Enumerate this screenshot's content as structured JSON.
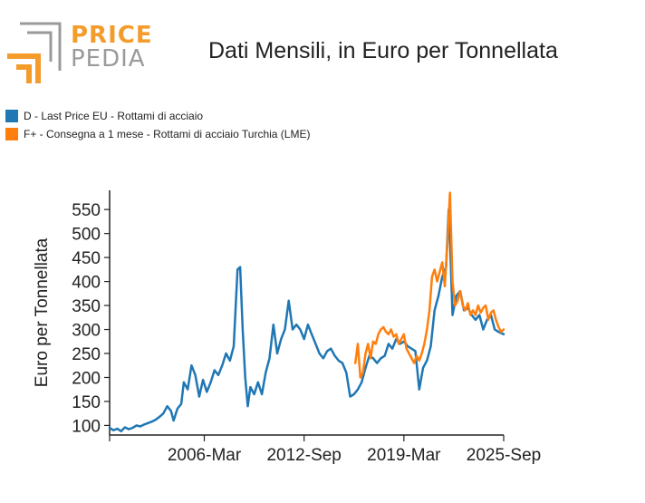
{
  "header": {
    "logo_top": "PRICE",
    "logo_bottom": "PEDIA",
    "title": "Dati Mensili, in Euro per Tonnellata"
  },
  "colors": {
    "blue": "#1f77b4",
    "orange": "#ff7f0e",
    "logo_orange": "#f39c2b",
    "logo_gray": "#9a9a9a"
  },
  "chart_data": {
    "type": "line",
    "title": "Dati Mensili, in Euro per Tonnellata",
    "xlabel": "",
    "ylabel": "Euro per Tonnellata",
    "ylim": [
      80,
      590
    ],
    "xlim": [
      "2000-01",
      "2025-09"
    ],
    "yticks": [
      100,
      150,
      200,
      250,
      300,
      350,
      400,
      450,
      500,
      550
    ],
    "xticks": [
      "2006-Mar",
      "2012-Sep",
      "2019-Mar",
      "2025-Sep"
    ],
    "grid": false,
    "legend_position": "top-left",
    "series": [
      {
        "name": "D - Last Price EU - Rottami di acciaio",
        "color": "#1f77b4",
        "x": [
          "2000-01",
          "2000-04",
          "2000-07",
          "2000-10",
          "2001-01",
          "2001-04",
          "2001-07",
          "2001-10",
          "2002-01",
          "2002-04",
          "2002-07",
          "2002-10",
          "2003-01",
          "2003-04",
          "2003-07",
          "2003-10",
          "2004-01",
          "2004-03",
          "2004-06",
          "2004-09",
          "2004-11",
          "2005-02",
          "2005-05",
          "2005-08",
          "2005-11",
          "2006-02",
          "2006-05",
          "2006-08",
          "2006-11",
          "2007-02",
          "2007-05",
          "2007-08",
          "2007-11",
          "2008-02",
          "2008-05",
          "2008-07",
          "2008-09",
          "2008-11",
          "2009-01",
          "2009-03",
          "2009-06",
          "2009-09",
          "2009-12",
          "2010-03",
          "2010-06",
          "2010-09",
          "2010-12",
          "2011-03",
          "2011-06",
          "2011-09",
          "2011-12",
          "2012-03",
          "2012-06",
          "2012-09",
          "2012-12",
          "2013-03",
          "2013-06",
          "2013-09",
          "2013-12",
          "2014-03",
          "2014-06",
          "2014-09",
          "2014-12",
          "2015-03",
          "2015-06",
          "2015-09",
          "2015-12",
          "2016-03",
          "2016-06",
          "2016-09",
          "2016-12",
          "2017-03",
          "2017-06",
          "2017-09",
          "2017-12",
          "2018-03",
          "2018-06",
          "2018-09",
          "2018-12",
          "2019-03",
          "2019-06",
          "2019-09",
          "2019-12",
          "2020-03",
          "2020-06",
          "2020-09",
          "2020-12",
          "2021-03",
          "2021-06",
          "2021-09",
          "2021-12",
          "2022-02",
          "2022-03",
          "2022-05",
          "2022-08",
          "2022-11",
          "2023-02",
          "2023-05",
          "2023-08",
          "2023-11",
          "2024-02",
          "2024-05",
          "2024-08",
          "2024-11",
          "2025-02",
          "2025-05",
          "2025-09"
        ],
        "values": [
          95,
          90,
          93,
          88,
          96,
          92,
          95,
          100,
          98,
          102,
          105,
          108,
          112,
          118,
          125,
          140,
          130,
          110,
          135,
          145,
          190,
          175,
          225,
          205,
          160,
          195,
          170,
          190,
          215,
          205,
          225,
          250,
          235,
          265,
          425,
          430,
          300,
          200,
          140,
          180,
          165,
          190,
          165,
          210,
          240,
          310,
          250,
          280,
          300,
          360,
          300,
          310,
          300,
          280,
          310,
          290,
          270,
          250,
          240,
          255,
          260,
          245,
          235,
          230,
          210,
          160,
          165,
          175,
          190,
          220,
          245,
          240,
          230,
          240,
          245,
          270,
          260,
          280,
          270,
          275,
          265,
          260,
          255,
          175,
          220,
          235,
          265,
          340,
          370,
          410,
          430,
          550,
          490,
          330,
          370,
          380,
          340,
          345,
          330,
          320,
          330,
          300,
          320,
          330,
          300,
          295,
          290
        ]
      },
      {
        "name": "F+ - Consegna a 1 mese - Rottami di acciaio Turchia (LME)",
        "color": "#ff7f0e",
        "x": [
          "2016-01",
          "2016-03",
          "2016-05",
          "2016-07",
          "2016-09",
          "2016-11",
          "2017-01",
          "2017-03",
          "2017-05",
          "2017-07",
          "2017-09",
          "2017-11",
          "2018-01",
          "2018-03",
          "2018-05",
          "2018-07",
          "2018-09",
          "2018-11",
          "2019-01",
          "2019-03",
          "2019-05",
          "2019-07",
          "2019-09",
          "2019-11",
          "2020-01",
          "2020-03",
          "2020-05",
          "2020-07",
          "2020-09",
          "2020-11",
          "2021-01",
          "2021-03",
          "2021-05",
          "2021-07",
          "2021-09",
          "2021-11",
          "2022-01",
          "2022-03",
          "2022-05",
          "2022-07",
          "2022-09",
          "2022-11",
          "2023-01",
          "2023-03",
          "2023-05",
          "2023-07",
          "2023-09",
          "2023-11",
          "2024-01",
          "2024-03",
          "2024-05",
          "2024-07",
          "2024-09",
          "2024-11",
          "2025-01",
          "2025-03",
          "2025-05",
          "2025-07",
          "2025-09"
        ],
        "values": [
          230,
          270,
          200,
          210,
          250,
          270,
          240,
          275,
          270,
          290,
          300,
          305,
          295,
          290,
          300,
          285,
          290,
          270,
          280,
          290,
          260,
          250,
          240,
          230,
          245,
          235,
          250,
          270,
          300,
          340,
          410,
          425,
          400,
          420,
          440,
          390,
          480,
          585,
          400,
          350,
          360,
          380,
          350,
          340,
          355,
          330,
          340,
          330,
          350,
          335,
          345,
          350,
          320,
          335,
          340,
          320,
          305,
          295,
          300
        ]
      }
    ]
  }
}
